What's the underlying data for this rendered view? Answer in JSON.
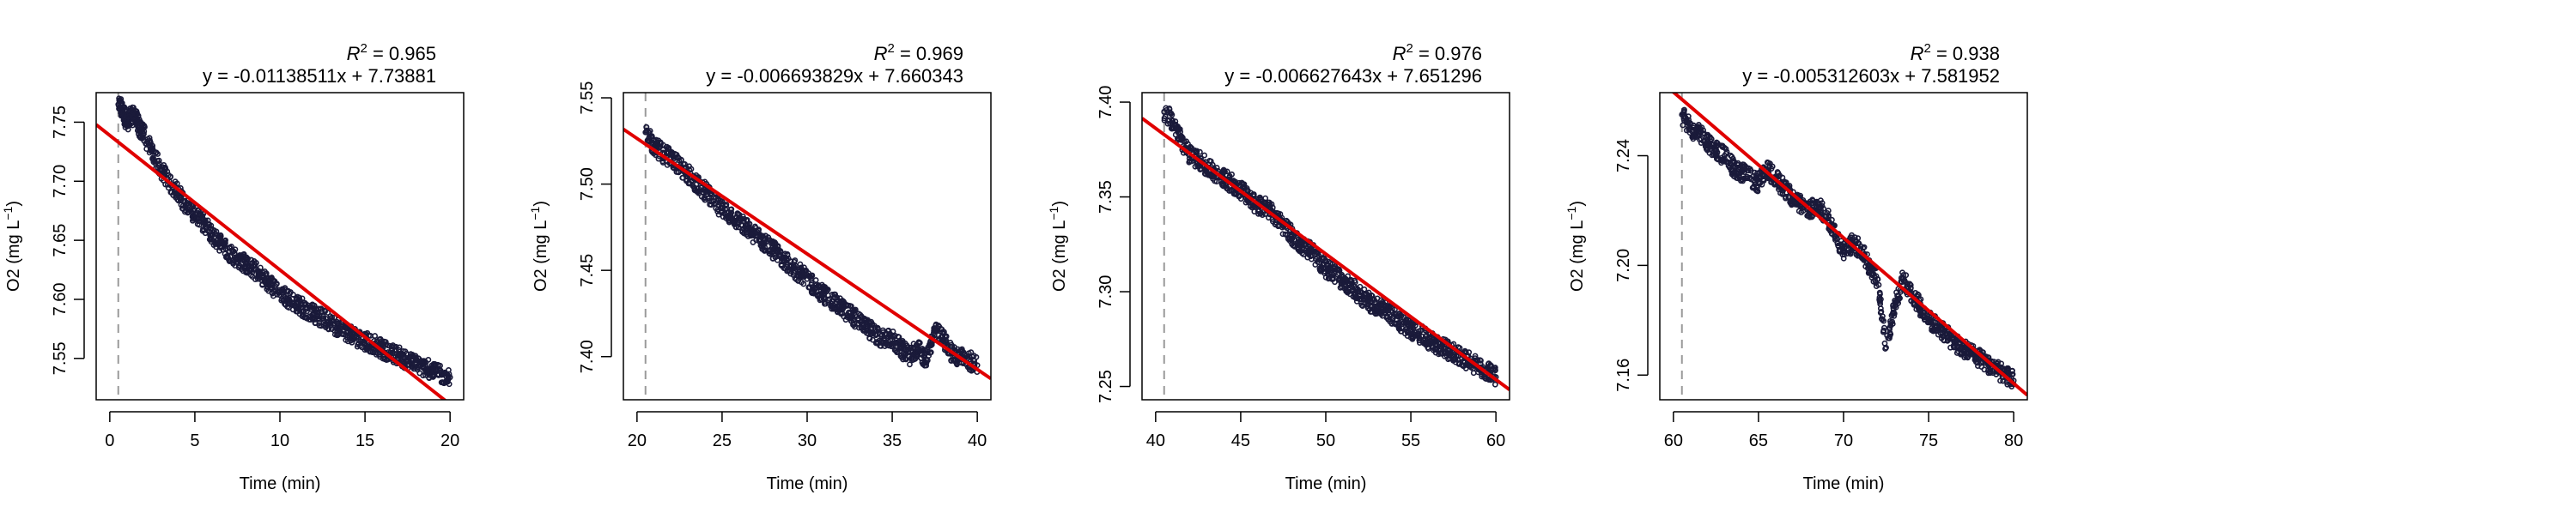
{
  "chart_data": [
    {
      "type": "scatter",
      "ylabel_main": "O2",
      "ylabel_unit": "(mg L",
      "ylabel_exp": "−1",
      "ylabel_close": ")",
      "xlabel": "Time (min)",
      "r2_label": "R",
      "r2_exp": "2",
      "r2_value": " = 0.965",
      "equation": "y = -0.01138511x + 7.73881",
      "slope": -0.01138511,
      "intercept": 7.73881,
      "xlim": [
        0,
        20
      ],
      "ylim": [
        7.515,
        7.775
      ],
      "xticks": [
        "0",
        "5",
        "10",
        "15",
        "20"
      ],
      "xtick_values": [
        0,
        5,
        10,
        15,
        20
      ],
      "yticks": [
        "7.55",
        "7.60",
        "7.65",
        "7.70",
        "7.75"
      ],
      "ytick_values": [
        7.55,
        7.6,
        7.65,
        7.7,
        7.75
      ],
      "vline_x": 0.5,
      "x": [
        0.5,
        0.75,
        1,
        1.25,
        1.5,
        1.75,
        2,
        2.5,
        3,
        3.5,
        4,
        4.5,
        5,
        5.5,
        6,
        6.5,
        7,
        7.5,
        8,
        8.5,
        9,
        9.5,
        10,
        10.5,
        11,
        11.5,
        12,
        12.5,
        13,
        13.5,
        14,
        14.5,
        15,
        15.5,
        16,
        16.5,
        17,
        17.5,
        18,
        18.5,
        19,
        19.5,
        20
      ],
      "y": [
        7.765,
        7.76,
        7.75,
        7.755,
        7.755,
        7.745,
        7.74,
        7.725,
        7.71,
        7.7,
        7.69,
        7.68,
        7.672,
        7.665,
        7.655,
        7.648,
        7.64,
        7.635,
        7.63,
        7.625,
        7.618,
        7.612,
        7.606,
        7.6,
        7.596,
        7.592,
        7.588,
        7.584,
        7.58,
        7.576,
        7.572,
        7.568,
        7.565,
        7.562,
        7.558,
        7.555,
        7.552,
        7.548,
        7.545,
        7.542,
        7.54,
        7.536,
        7.534
      ],
      "point_color": "#1a1a3a",
      "line_color": "#e00000"
    },
    {
      "type": "scatter",
      "ylabel_main": "O2",
      "ylabel_unit": "(mg L",
      "ylabel_exp": "−1",
      "ylabel_close": ")",
      "xlabel": "Time (min)",
      "r2_label": "R",
      "r2_exp": "2",
      "r2_value": " = 0.969",
      "equation": "y = -0.006693829x + 7.660343",
      "slope": -0.006693829,
      "intercept": 7.660343,
      "xlim": [
        20,
        40
      ],
      "ylim": [
        7.375,
        7.553
      ],
      "xticks": [
        "20",
        "25",
        "30",
        "35",
        "40"
      ],
      "xtick_values": [
        20,
        25,
        30,
        35,
        40
      ],
      "yticks": [
        "7.40",
        "7.45",
        "7.50",
        "7.55"
      ],
      "ytick_values": [
        7.4,
        7.45,
        7.5,
        7.55
      ],
      "vline_x": 20.5,
      "x": [
        20.5,
        21,
        21.5,
        22,
        22.5,
        23,
        23.5,
        24,
        24.5,
        25,
        25.5,
        26,
        26.5,
        27,
        27.5,
        28,
        28.5,
        29,
        29.5,
        30,
        30.5,
        31,
        31.5,
        32,
        32.5,
        33,
        33.5,
        34,
        34.5,
        35,
        35.5,
        36,
        36.5,
        37,
        37.5,
        38,
        38.5,
        39,
        39.5,
        40
      ],
      "y": [
        7.53,
        7.522,
        7.518,
        7.515,
        7.51,
        7.506,
        7.5,
        7.496,
        7.49,
        7.486,
        7.482,
        7.478,
        7.474,
        7.47,
        7.466,
        7.462,
        7.457,
        7.453,
        7.449,
        7.445,
        7.44,
        7.436,
        7.432,
        7.428,
        7.425,
        7.421,
        7.417,
        7.413,
        7.41,
        7.41,
        7.405,
        7.4,
        7.405,
        7.398,
        7.415,
        7.41,
        7.402,
        7.4,
        7.398,
        7.395
      ],
      "point_color": "#1a1a3a",
      "line_color": "#e00000"
    },
    {
      "type": "scatter",
      "ylabel_main": "O2",
      "ylabel_unit": "(mg L",
      "ylabel_exp": "−1",
      "ylabel_close": ")",
      "xlabel": "Time (min)",
      "r2_label": "R",
      "r2_exp": "2",
      "r2_value": " = 0.976",
      "equation": "y = -0.006627643x + 7.651296",
      "slope": -0.006627643,
      "intercept": 7.651296,
      "xlim": [
        40,
        60
      ],
      "ylim": [
        7.243,
        7.405
      ],
      "xticks": [
        "40",
        "45",
        "50",
        "55",
        "60"
      ],
      "xtick_values": [
        40,
        45,
        50,
        55,
        60
      ],
      "yticks": [
        "7.25",
        "7.30",
        "7.35",
        "7.40"
      ],
      "ytick_values": [
        7.25,
        7.3,
        7.35,
        7.4
      ],
      "vline_x": 40.5,
      "x": [
        40.5,
        41,
        41.5,
        42,
        42.5,
        43,
        43.5,
        44,
        44.5,
        45,
        45.5,
        46,
        46.5,
        47,
        47.5,
        48,
        48.5,
        49,
        49.5,
        50,
        50.5,
        51,
        51.5,
        52,
        52.5,
        53,
        53.5,
        54,
        54.5,
        55,
        55.5,
        56,
        56.5,
        57,
        57.5,
        58,
        58.5,
        59,
        59.5,
        60
      ],
      "y": [
        7.395,
        7.39,
        7.38,
        7.372,
        7.37,
        7.366,
        7.362,
        7.36,
        7.357,
        7.354,
        7.35,
        7.345,
        7.345,
        7.34,
        7.335,
        7.33,
        7.325,
        7.322,
        7.318,
        7.312,
        7.31,
        7.305,
        7.303,
        7.298,
        7.295,
        7.292,
        7.29,
        7.287,
        7.283,
        7.28,
        7.278,
        7.275,
        7.272,
        7.27,
        7.268,
        7.265,
        7.263,
        7.26,
        7.258,
        7.255
      ],
      "point_color": "#1a1a3a",
      "line_color": "#e00000"
    },
    {
      "type": "scatter",
      "ylabel_main": "O2",
      "ylabel_unit": "(mg L",
      "ylabel_exp": "−1",
      "ylabel_close": ")",
      "xlabel": "Time (min)",
      "r2_label": "R",
      "r2_exp": "2",
      "r2_value": " = 0.938",
      "equation": "y = -0.005312603x + 7.581952",
      "slope": -0.005312603,
      "intercept": 7.581952,
      "xlim": [
        60,
        80
      ],
      "ylim": [
        7.151,
        7.263
      ],
      "xticks": [
        "60",
        "65",
        "70",
        "75",
        "80"
      ],
      "xtick_values": [
        60,
        65,
        70,
        75,
        80
      ],
      "yticks": [
        "7.16",
        "7.20",
        "7.24"
      ],
      "ytick_values": [
        7.16,
        7.2,
        7.24
      ],
      "vline_x": 60.5,
      "x": [
        60.5,
        61,
        61.5,
        62,
        62.5,
        63,
        63.5,
        64,
        64.5,
        65,
        65.5,
        66,
        66.5,
        67,
        67.5,
        68,
        68.5,
        69,
        69.5,
        70,
        70.5,
        71,
        71.5,
        72,
        72.5,
        73,
        73.5,
        74,
        74.5,
        75,
        75.5,
        76,
        76.5,
        77,
        77.5,
        78,
        78.5,
        79,
        79.5,
        80
      ],
      "y": [
        7.255,
        7.25,
        7.248,
        7.245,
        7.242,
        7.24,
        7.236,
        7.234,
        7.232,
        7.23,
        7.235,
        7.232,
        7.228,
        7.225,
        7.222,
        7.22,
        7.222,
        7.218,
        7.212,
        7.205,
        7.208,
        7.206,
        7.2,
        7.195,
        7.17,
        7.185,
        7.195,
        7.19,
        7.185,
        7.18,
        7.178,
        7.175,
        7.172,
        7.17,
        7.168,
        7.166,
        7.164,
        7.162,
        7.16,
        7.158
      ],
      "point_color": "#1a1a3a",
      "line_color": "#e00000"
    }
  ]
}
